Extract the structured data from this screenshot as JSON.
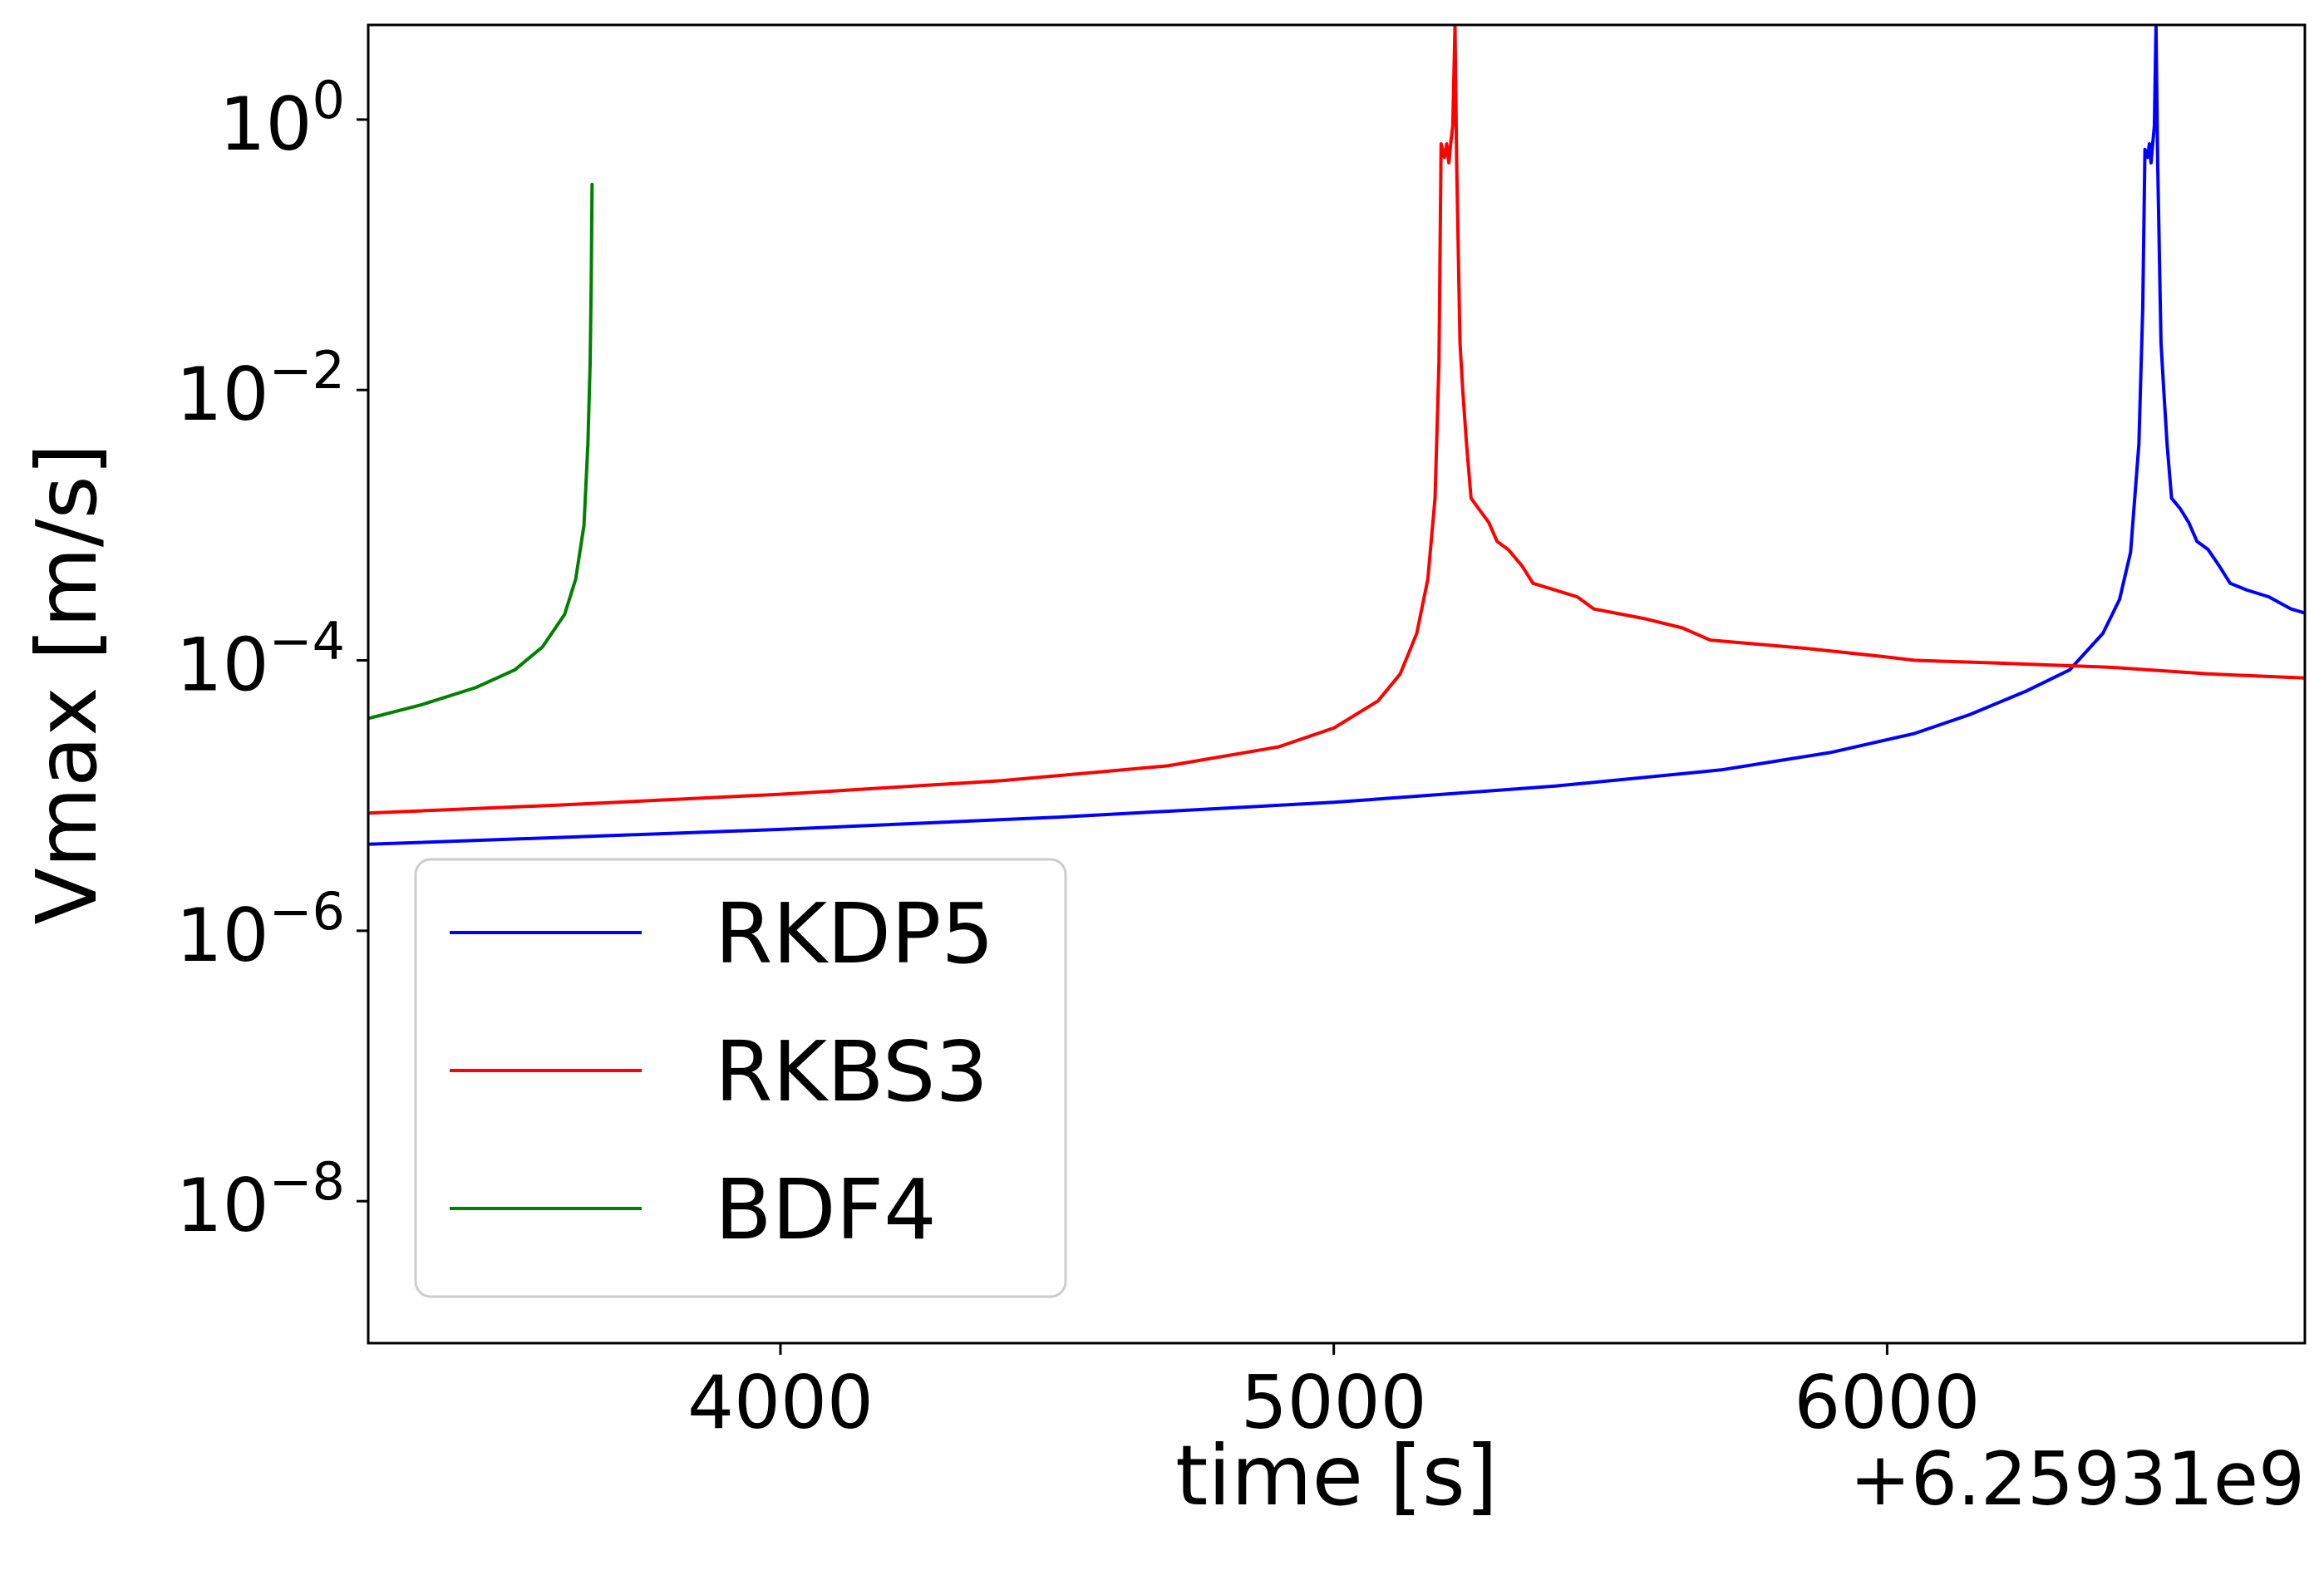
{
  "chart_data": {
    "type": "line",
    "title": "",
    "xlabel": "time [s]",
    "ylabel": "Vmax [m/s]",
    "x_offset_label": "+6.25931e9",
    "yscale": "log",
    "xlim": [
      3255,
      6755
    ],
    "ylim_exponent": [
      -9.05,
      0.7
    ],
    "xticks": [
      {
        "value": 4000,
        "label": "4000"
      },
      {
        "value": 5000,
        "label": "5000"
      },
      {
        "value": 6000,
        "label": "6000"
      }
    ],
    "yticks": [
      {
        "exp": 0,
        "base": "10",
        "sup": "0"
      },
      {
        "exp": -2,
        "base": "10",
        "sup": "−2"
      },
      {
        "exp": -4,
        "base": "10",
        "sup": "−4"
      },
      {
        "exp": -6,
        "base": "10",
        "sup": "−6"
      },
      {
        "exp": -8,
        "base": "10",
        "sup": "−8"
      }
    ],
    "grid": false,
    "legend_position": "lower-left",
    "series": [
      {
        "name": "RKDP5",
        "color": "#0000ff",
        "points": [
          [
            3255,
            -5.36
          ],
          [
            3600,
            -5.31
          ],
          [
            4000,
            -5.25
          ],
          [
            4500,
            -5.16
          ],
          [
            5000,
            -5.05
          ],
          [
            5400,
            -4.93
          ],
          [
            5700,
            -4.81
          ],
          [
            5900,
            -4.68
          ],
          [
            6050,
            -4.54
          ],
          [
            6150,
            -4.4
          ],
          [
            6250,
            -4.23
          ],
          [
            6330,
            -4.07
          ],
          [
            6390,
            -3.8
          ],
          [
            6420,
            -3.55
          ],
          [
            6440,
            -3.2
          ],
          [
            6455,
            -2.4
          ],
          [
            6462,
            -1.4
          ],
          [
            6466,
            -0.22
          ],
          [
            6471,
            -0.28
          ],
          [
            6474,
            -0.18
          ],
          [
            6477,
            -0.32
          ],
          [
            6480,
            -0.18
          ],
          [
            6483,
            -0.05
          ],
          [
            6486,
            0.69
          ],
          [
            6489,
            -0.32
          ],
          [
            6495,
            -1.65
          ],
          [
            6500,
            -2.0
          ],
          [
            6506,
            -2.4
          ],
          [
            6514,
            -2.8
          ],
          [
            6530,
            -2.88
          ],
          [
            6545,
            -2.98
          ],
          [
            6560,
            -3.12
          ],
          [
            6580,
            -3.18
          ],
          [
            6600,
            -3.3
          ],
          [
            6620,
            -3.43
          ],
          [
            6650,
            -3.48
          ],
          [
            6690,
            -3.53
          ],
          [
            6730,
            -3.62
          ],
          [
            6755,
            -3.65
          ]
        ]
      },
      {
        "name": "RKBS3",
        "color": "#ff0000",
        "points": [
          [
            3255,
            -5.13
          ],
          [
            3600,
            -5.07
          ],
          [
            4000,
            -4.99
          ],
          [
            4400,
            -4.89
          ],
          [
            4700,
            -4.78
          ],
          [
            4900,
            -4.64
          ],
          [
            5000,
            -4.5
          ],
          [
            5080,
            -4.3
          ],
          [
            5120,
            -4.1
          ],
          [
            5150,
            -3.8
          ],
          [
            5170,
            -3.4
          ],
          [
            5183,
            -2.8
          ],
          [
            5190,
            -1.8
          ],
          [
            5194,
            -0.18
          ],
          [
            5200,
            -0.28
          ],
          [
            5204,
            -0.18
          ],
          [
            5208,
            -0.32
          ],
          [
            5212,
            -0.15
          ],
          [
            5215,
            -0.05
          ],
          [
            5219,
            0.69
          ],
          [
            5222,
            -0.32
          ],
          [
            5228,
            -1.65
          ],
          [
            5233,
            -2.0
          ],
          [
            5240,
            -2.4
          ],
          [
            5248,
            -2.8
          ],
          [
            5262,
            -2.88
          ],
          [
            5280,
            -2.98
          ],
          [
            5295,
            -3.12
          ],
          [
            5315,
            -3.18
          ],
          [
            5340,
            -3.3
          ],
          [
            5360,
            -3.43
          ],
          [
            5400,
            -3.48
          ],
          [
            5440,
            -3.53
          ],
          [
            5470,
            -3.62
          ],
          [
            5560,
            -3.69
          ],
          [
            5630,
            -3.76
          ],
          [
            5680,
            -3.85
          ],
          [
            5850,
            -3.91
          ],
          [
            5990,
            -3.97
          ],
          [
            6050,
            -4.0
          ],
          [
            6200,
            -4.02
          ],
          [
            6400,
            -4.05
          ],
          [
            6580,
            -4.1
          ],
          [
            6755,
            -4.13
          ]
        ]
      },
      {
        "name": "BDF4",
        "color": "#008000",
        "points": [
          [
            3255,
            -4.43
          ],
          [
            3350,
            -4.33
          ],
          [
            3450,
            -4.2
          ],
          [
            3520,
            -4.07
          ],
          [
            3570,
            -3.9
          ],
          [
            3610,
            -3.66
          ],
          [
            3630,
            -3.4
          ],
          [
            3645,
            -3.0
          ],
          [
            3652,
            -2.4
          ],
          [
            3656,
            -1.8
          ],
          [
            3658,
            -1.2
          ],
          [
            3659.5,
            -0.48
          ]
        ]
      }
    ]
  }
}
